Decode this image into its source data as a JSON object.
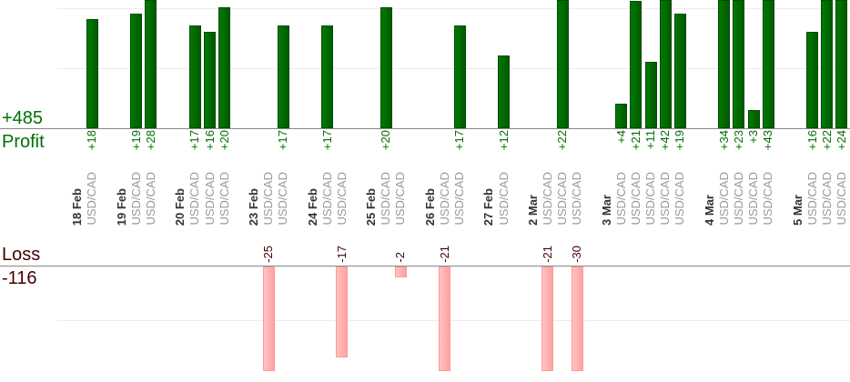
{
  "summary": {
    "profit_total": "+485",
    "profit_label": "Profit",
    "loss_label": "Loss",
    "loss_total": "-116"
  },
  "colors": {
    "profit": "#006400",
    "loss": "#ffb0b0",
    "loss_text": "#440000"
  },
  "chart_data": {
    "type": "bar",
    "title": "",
    "profit_scale_max": 20,
    "loss_scale_max": -20,
    "days": [
      {
        "date": "18 Feb",
        "trades": [
          {
            "pair": "USD/CAD",
            "value": 18
          }
        ]
      },
      {
        "date": "19 Feb",
        "trades": [
          {
            "pair": "USD/CAD",
            "value": 19
          },
          {
            "pair": "USD/CAD",
            "value": 28
          }
        ]
      },
      {
        "date": "20 Feb",
        "trades": [
          {
            "pair": "USD/CAD",
            "value": 17
          },
          {
            "pair": "USD/CAD",
            "value": 16
          },
          {
            "pair": "USD/CAD",
            "value": 20
          }
        ]
      },
      {
        "date": "23 Feb",
        "trades": [
          {
            "pair": "USD/CAD",
            "value": -25
          },
          {
            "pair": "USD/CAD",
            "value": 17
          }
        ]
      },
      {
        "date": "24 Feb",
        "trades": [
          {
            "pair": "USD/CAD",
            "value": 17
          },
          {
            "pair": "USD/CAD",
            "value": -17
          }
        ]
      },
      {
        "date": "25 Feb",
        "trades": [
          {
            "pair": "USD/CAD",
            "value": 20
          },
          {
            "pair": "USD/CAD",
            "value": -2
          }
        ]
      },
      {
        "date": "26 Feb",
        "trades": [
          {
            "pair": "USD/CAD",
            "value": -21
          },
          {
            "pair": "USD/CAD",
            "value": 17
          }
        ]
      },
      {
        "date": "27 Feb",
        "trades": [
          {
            "pair": "USD/CAD",
            "value": 12
          }
        ]
      },
      {
        "date": "2 Mar",
        "trades": [
          {
            "pair": "USD/CAD",
            "value": -21
          },
          {
            "pair": "USD/CAD",
            "value": 22
          },
          {
            "pair": "USD/CAD",
            "value": -30
          }
        ]
      },
      {
        "date": "3 Mar",
        "trades": [
          {
            "pair": "USD/CAD",
            "value": 4
          },
          {
            "pair": "USD/CAD",
            "value": 21
          },
          {
            "pair": "USD/CAD",
            "value": 11
          },
          {
            "pair": "USD/CAD",
            "value": 42
          },
          {
            "pair": "USD/CAD",
            "value": 19
          }
        ]
      },
      {
        "date": "4 Mar",
        "trades": [
          {
            "pair": "USD/CAD",
            "value": 34
          },
          {
            "pair": "USD/CAD",
            "value": 23
          },
          {
            "pair": "USD/CAD",
            "value": 3
          },
          {
            "pair": "USD/CAD",
            "value": 43
          }
        ]
      },
      {
        "date": "5 Mar",
        "trades": [
          {
            "pair": "USD/CAD",
            "value": 16
          },
          {
            "pair": "USD/CAD",
            "value": 22
          },
          {
            "pair": "USD/CAD",
            "value": 24
          }
        ]
      }
    ]
  }
}
